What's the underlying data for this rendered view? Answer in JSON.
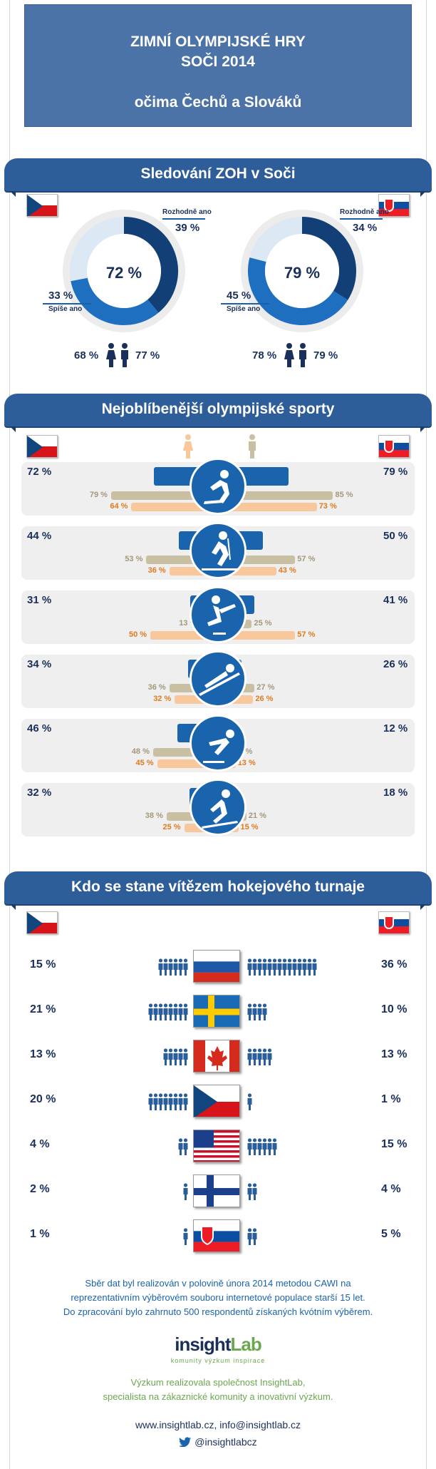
{
  "title": {
    "line1": "ZIMNÍ OLYMPIJSKÉ HRY",
    "line2": "SOČI 2014",
    "line3": "očima Čechů a Slováků"
  },
  "section1": {
    "heading": "Sledování ZOH v Soči",
    "cz": {
      "total": "72 %",
      "definitely_label": "Rozhodně ano",
      "definitely": "39 %",
      "rather_label": "Spíše ano",
      "rather": "33 %",
      "women": "68 %",
      "men": "77 %",
      "definitely_value": 39,
      "rather_value": 33
    },
    "sk": {
      "total": "79 %",
      "definitely_label": "Rozhodně ano",
      "definitely": "34 %",
      "rather_label": "Spíše ano",
      "rather": "45 %",
      "women": "78 %",
      "men": "79 %",
      "definitely_value": 34,
      "rather_value": 45
    }
  },
  "section2": {
    "heading": "Nejoblíbenější olympijské sporty",
    "sports": [
      {
        "icon": "ice-hockey-icon",
        "cz": "72 %",
        "sk": "79 %",
        "female_cz": "79 %",
        "male_cz": "64 %",
        "female_sk": "85 %",
        "male_sk": "73 %",
        "cz_v": 72,
        "sk_v": 79,
        "fcz": 79,
        "mcz": 64,
        "fsk": 85,
        "msk": 73
      },
      {
        "icon": "cross-country-skiing-icon",
        "cz": "44 %",
        "sk": "50 %",
        "female_cz": "53 %",
        "male_cz": "36 %",
        "female_sk": "57 %",
        "male_sk": "43 %",
        "cz_v": 44,
        "sk_v": 50,
        "fcz": 53,
        "mcz": 36,
        "fsk": 57,
        "msk": 43
      },
      {
        "icon": "figure-skating-icon",
        "cz": "31 %",
        "sk": "41 %",
        "female_cz": "13 %",
        "male_cz": "50 %",
        "female_sk": "25 %",
        "male_sk": "57 %",
        "cz_v": 31,
        "sk_v": 41,
        "fcz": 13,
        "mcz": 50,
        "fsk": 25,
        "msk": 57
      },
      {
        "icon": "ski-jumping-icon",
        "cz": "34 %",
        "sk": "26 %",
        "female_cz": "36 %",
        "male_cz": "32 %",
        "female_sk": "27 %",
        "male_sk": "26 %",
        "cz_v": 34,
        "sk_v": 26,
        "fcz": 36,
        "mcz": 32,
        "fsk": 27,
        "msk": 26
      },
      {
        "icon": "speed-skating-icon",
        "cz": "46 %",
        "sk": "12 %",
        "female_cz": "48 %",
        "male_cz": "45 %",
        "female_sk": "11 %",
        "male_sk": "13 %",
        "cz_v": 46,
        "sk_v": 12,
        "fcz": 48,
        "mcz": 45,
        "fsk": 11,
        "msk": 13
      },
      {
        "icon": "alpine-skiing-icon",
        "cz": "32 %",
        "sk": "18 %",
        "female_cz": "38 %",
        "male_cz": "25 %",
        "female_sk": "21 %",
        "male_sk": "15 %",
        "cz_v": 32,
        "sk_v": 18,
        "fcz": 38,
        "mcz": 25,
        "fsk": 21,
        "msk": 15
      }
    ]
  },
  "section3": {
    "heading": "Kdo se stane vítězem hokejového turnaje",
    "teams": [
      {
        "flag": "russia-flag",
        "cz": "15 %",
        "sk": "36 %",
        "cz_v": 15,
        "sk_v": 36
      },
      {
        "flag": "sweden-flag",
        "cz": "21 %",
        "sk": "10 %",
        "cz_v": 21,
        "sk_v": 10
      },
      {
        "flag": "canada-flag",
        "cz": "13 %",
        "sk": "13 %",
        "cz_v": 13,
        "sk_v": 13
      },
      {
        "flag": "czech-flag",
        "cz": "20 %",
        "sk": "1 %",
        "cz_v": 20,
        "sk_v": 1
      },
      {
        "flag": "usa-flag",
        "cz": "4 %",
        "sk": "15 %",
        "cz_v": 4,
        "sk_v": 15
      },
      {
        "flag": "finland-flag",
        "cz": "2 %",
        "sk": "4 %",
        "cz_v": 2,
        "sk_v": 4
      },
      {
        "flag": "slovakia-flag",
        "cz": "1 %",
        "sk": "5 %",
        "cz_v": 1,
        "sk_v": 5
      }
    ]
  },
  "footer": {
    "method1": "Sběr dat byl realizován v polovině února 2014 metodou CAWI na",
    "method2": "reprezentativním výběrovém souboru internetové populace starší 15 let.",
    "method3": "Do zpracování bylo zahrnuto 500 respondentů získaných kvótním výběrem.",
    "logo_main": "insight",
    "logo_accent": "Lab",
    "logo_tagline": "komunity výzkum inspirace",
    "credit1": "Výzkum realizovala společnost InsightLab,",
    "credit2": "specialista na zákaznické komunity a inovativní výzkum.",
    "contact": "www.insightlab.cz,  info@insightlab.cz",
    "twitter": "@insightlabcz"
  },
  "colors": {
    "navy": "#1a2f5a",
    "blue": "#1a63ad",
    "tan": "#c9c0a4",
    "orange": "#f8c79b",
    "green": "#6aa84f"
  }
}
